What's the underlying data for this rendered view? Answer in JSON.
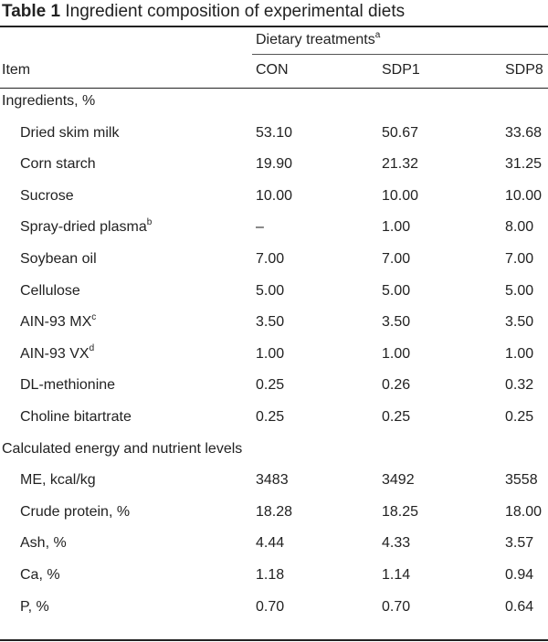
{
  "caption": {
    "label": "Table 1",
    "text": "Ingredient composition of experimental diets"
  },
  "header": {
    "group_label": "Dietary treatments",
    "group_sup": "a",
    "item_label": "Item",
    "columns": [
      "CON",
      "SDP1",
      "SDP8"
    ]
  },
  "sections": [
    {
      "title": "Ingredients, %",
      "rows": [
        {
          "item": "Dried skim milk",
          "sup": "",
          "values": [
            "53.10",
            "50.67",
            "33.68"
          ]
        },
        {
          "item": "Corn starch",
          "sup": "",
          "values": [
            "19.90",
            "21.32",
            "31.25"
          ]
        },
        {
          "item": "Sucrose",
          "sup": "",
          "values": [
            "10.00",
            "10.00",
            "10.00"
          ]
        },
        {
          "item": "Spray-dried plasma",
          "sup": "b",
          "values": [
            "–",
            "1.00",
            "8.00"
          ]
        },
        {
          "item": "Soybean oil",
          "sup": "",
          "values": [
            "7.00",
            "7.00",
            "7.00"
          ]
        },
        {
          "item": "Cellulose",
          "sup": "",
          "values": [
            "5.00",
            "5.00",
            "5.00"
          ]
        },
        {
          "item": "AIN-93 MX",
          "sup": "c",
          "values": [
            "3.50",
            "3.50",
            "3.50"
          ]
        },
        {
          "item": "AIN-93 VX",
          "sup": "d",
          "values": [
            "1.00",
            "1.00",
            "1.00"
          ]
        },
        {
          "item": "DL-methionine",
          "sup": "",
          "values": [
            "0.25",
            "0.26",
            "0.32"
          ]
        },
        {
          "item": "Choline bitartrate",
          "sup": "",
          "values": [
            "0.25",
            "0.25",
            "0.25"
          ]
        }
      ]
    },
    {
      "title": "Calculated energy and nutrient levels",
      "rows": [
        {
          "item": "ME, kcal/kg",
          "sup": "",
          "values": [
            "3483",
            "3492",
            "3558"
          ]
        },
        {
          "item": "Crude protein, %",
          "sup": "",
          "values": [
            "18.28",
            "18.25",
            "18.00"
          ]
        },
        {
          "item": "Ash, %",
          "sup": "",
          "values": [
            "4.44",
            "4.33",
            "3.57"
          ]
        },
        {
          "item": "Ca, %",
          "sup": "",
          "values": [
            "1.18",
            "1.14",
            "0.94"
          ]
        },
        {
          "item": "P, %",
          "sup": "",
          "values": [
            "0.70",
            "0.70",
            "0.64"
          ]
        }
      ]
    }
  ]
}
